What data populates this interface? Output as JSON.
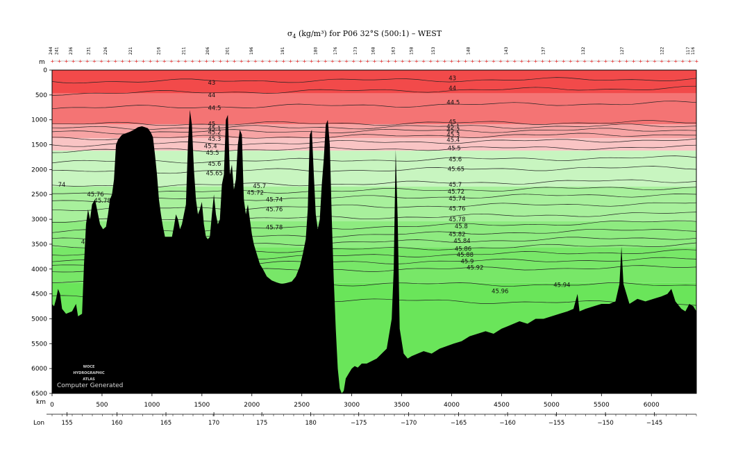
{
  "chart_data": {
    "type": "heatmap",
    "title_symbol": "σ",
    "title_sub": "4",
    "title_rest": " (kg/m³) for P06 32°S (500:1) – WEST",
    "depth_unit": "m",
    "distance_unit": "km",
    "lon_label": "Lon",
    "depth_ticks": [
      0,
      500,
      1000,
      1500,
      2000,
      2500,
      3000,
      3500,
      4000,
      4500,
      5000,
      5500,
      6000,
      6500
    ],
    "depth_range": [
      0,
      6500
    ],
    "distance_ticks": [
      0,
      500,
      1000,
      1500,
      2000,
      2500,
      3000,
      3500,
      4000,
      4500,
      5000,
      5500,
      6000
    ],
    "distance_range": [
      0,
      6450
    ],
    "lon_ticks": [
      {
        "km": 150,
        "label": "155"
      },
      {
        "km": 650,
        "label": "160"
      },
      {
        "km": 1140,
        "label": "165"
      },
      {
        "km": 1620,
        "label": "170"
      },
      {
        "km": 2100,
        "label": "175"
      },
      {
        "km": 2590,
        "label": "180"
      },
      {
        "km": 3070,
        "label": "−175"
      },
      {
        "km": 3570,
        "label": "−170"
      },
      {
        "km": 4070,
        "label": "−165"
      },
      {
        "km": 4560,
        "label": "−160"
      },
      {
        "km": 5050,
        "label": "−155"
      },
      {
        "km": 5540,
        "label": "−150"
      },
      {
        "km": 6030,
        "label": "−145"
      }
    ],
    "stations": [
      {
        "km": 0,
        "label": "244"
      },
      {
        "km": 60,
        "label": "241"
      },
      {
        "km": 200,
        "label": "236"
      },
      {
        "km": 380,
        "label": "231"
      },
      {
        "km": 550,
        "label": "226"
      },
      {
        "km": 800,
        "label": "221"
      },
      {
        "km": 1080,
        "label": "216"
      },
      {
        "km": 1330,
        "label": "211"
      },
      {
        "km": 1570,
        "label": "206"
      },
      {
        "km": 1770,
        "label": "201"
      },
      {
        "km": 2010,
        "label": "196"
      },
      {
        "km": 2320,
        "label": "191"
      },
      {
        "km": 2650,
        "label": "180"
      },
      {
        "km": 2850,
        "label": "176"
      },
      {
        "km": 3050,
        "label": "173"
      },
      {
        "km": 3230,
        "label": "168"
      },
      {
        "km": 3430,
        "label": "163"
      },
      {
        "km": 3610,
        "label": "158"
      },
      {
        "km": 3830,
        "label": "153"
      },
      {
        "km": 4180,
        "label": "148"
      },
      {
        "km": 4560,
        "label": "143"
      },
      {
        "km": 4930,
        "label": "137"
      },
      {
        "km": 5330,
        "label": "132"
      },
      {
        "km": 5720,
        "label": "127"
      },
      {
        "km": 6120,
        "label": "122"
      },
      {
        "km": 6380,
        "label": "117"
      },
      {
        "km": 6430,
        "label": "116"
      }
    ],
    "contour_levels": [
      {
        "value": "43",
        "depth_west": 230,
        "depth_east": 180
      },
      {
        "value": "44",
        "depth_west": 470,
        "depth_east": 360
      },
      {
        "value": "44.5",
        "depth_west": 760,
        "depth_east": 660
      },
      {
        "value": "45",
        "depth_west": 1090,
        "depth_east": 1050
      },
      {
        "value": "45.1",
        "depth_west": 1170,
        "depth_east": 1120
      },
      {
        "value": "45.2",
        "depth_west": 1250,
        "depth_east": 1200
      },
      {
        "value": "45.3",
        "depth_west": 1370,
        "depth_east": 1290
      },
      {
        "value": "45.4",
        "depth_west": 1500,
        "depth_east": 1400
      },
      {
        "value": "45.5",
        "depth_west": 1620,
        "depth_east": 1550
      },
      {
        "value": "45.6",
        "depth_west": 1850,
        "depth_east": 1760
      },
      {
        "value": "45.65",
        "depth_west": 2050,
        "depth_east": 1960
      },
      {
        "value": "45.7",
        "depth_west": 2340,
        "depth_east": 2220
      },
      {
        "value": "45.72",
        "depth_west": 2480,
        "depth_east": 2360
      },
      {
        "value": "45.74",
        "depth_west": 2620,
        "depth_east": 2500
      },
      {
        "value": "45.76",
        "depth_west": 2800,
        "depth_east": 2680
      },
      {
        "value": "45.78",
        "depth_west": 3040,
        "depth_east": 2880
      },
      {
        "value": "45.8",
        "depth_west": 3260,
        "depth_east": 3040
      },
      {
        "value": "45.82",
        "depth_west": 3420,
        "depth_east": 3200
      },
      {
        "value": "45.84",
        "depth_west": 3560,
        "depth_east": 3360
      },
      {
        "value": "45.86",
        "depth_west": 3700,
        "depth_east": 3500
      },
      {
        "value": "45.88",
        "depth_west": 3820,
        "depth_east": 3640
      },
      {
        "value": "45.9",
        "depth_west": 3920,
        "depth_east": 3800
      },
      {
        "value": "45.92",
        "depth_west": 4060,
        "depth_east": 3960
      },
      {
        "value": "45.94",
        "depth_west": 4280,
        "depth_east": 4320
      },
      {
        "value": "45.96",
        "depth_west": 4560,
        "depth_east": 4700
      }
    ],
    "contour_labels": [
      {
        "text": "43",
        "km": 1560,
        "depth": 250
      },
      {
        "text": "44",
        "km": 1560,
        "depth": 500
      },
      {
        "text": "44.5",
        "km": 1560,
        "depth": 760
      },
      {
        "text": "45",
        "km": 1560,
        "depth": 1080
      },
      {
        "text": "45.1",
        "km": 1560,
        "depth": 1170
      },
      {
        "text": "45.2",
        "km": 1560,
        "depth": 1250
      },
      {
        "text": "45.3",
        "km": 1560,
        "depth": 1380
      },
      {
        "text": "45.4",
        "km": 1520,
        "depth": 1530
      },
      {
        "text": "45.5",
        "km": 1540,
        "depth": 1660
      },
      {
        "text": "45.6",
        "km": 1560,
        "depth": 1880
      },
      {
        "text": "45.65",
        "km": 1540,
        "depth": 2070
      },
      {
        "text": "45.7",
        "km": 2010,
        "depth": 2330
      },
      {
        "text": "45.72",
        "km": 1950,
        "depth": 2460
      },
      {
        "text": "45.74",
        "km": 2140,
        "depth": 2600
      },
      {
        "text": "45.76",
        "km": 2140,
        "depth": 2800
      },
      {
        "text": "45.78",
        "km": 2140,
        "depth": 3160
      },
      {
        "text": "74",
        "km": 60,
        "depth": 2300
      },
      {
        "text": "45.76",
        "km": 350,
        "depth": 2500
      },
      {
        "text": "45.78",
        "km": 420,
        "depth": 2620
      },
      {
        "text": "45.9",
        "km": 290,
        "depth": 3450
      },
      {
        "text": "43",
        "km": 3970,
        "depth": 160
      },
      {
        "text": "44",
        "km": 3970,
        "depth": 360
      },
      {
        "text": "44.5",
        "km": 3950,
        "depth": 650
      },
      {
        "text": "45",
        "km": 3970,
        "depth": 1040
      },
      {
        "text": "45.1",
        "km": 3950,
        "depth": 1130
      },
      {
        "text": "45.2",
        "km": 3950,
        "depth": 1210
      },
      {
        "text": "45.3",
        "km": 3950,
        "depth": 1300
      },
      {
        "text": "45.4",
        "km": 3950,
        "depth": 1400
      },
      {
        "text": "45.5",
        "km": 3960,
        "depth": 1570
      },
      {
        "text": "45.6",
        "km": 3970,
        "depth": 1790
      },
      {
        "text": "45.65",
        "km": 3960,
        "depth": 1990
      },
      {
        "text": "45.7",
        "km": 3970,
        "depth": 2300
      },
      {
        "text": "45.72",
        "km": 3960,
        "depth": 2440
      },
      {
        "text": "45.74",
        "km": 3970,
        "depth": 2580
      },
      {
        "text": "45.76",
        "km": 3970,
        "depth": 2780
      },
      {
        "text": "45.78",
        "km": 3970,
        "depth": 3000
      },
      {
        "text": "45.8",
        "km": 4030,
        "depth": 3140
      },
      {
        "text": "45.82",
        "km": 3970,
        "depth": 3300
      },
      {
        "text": "45.84",
        "km": 4020,
        "depth": 3430
      },
      {
        "text": "45.86",
        "km": 4030,
        "depth": 3590
      },
      {
        "text": "45.88",
        "km": 4050,
        "depth": 3710
      },
      {
        "text": "45.9",
        "km": 4090,
        "depth": 3840
      },
      {
        "text": "45.92",
        "km": 4150,
        "depth": 3970
      },
      {
        "text": "45.94",
        "km": 5020,
        "depth": 4320
      },
      {
        "text": "45.96",
        "km": 4400,
        "depth": 4440
      }
    ],
    "color_bands": [
      {
        "from": 0,
        "to": 470,
        "color": "#f24a4a"
      },
      {
        "from": 470,
        "to": 1090,
        "color": "#f47474"
      },
      {
        "from": 1090,
        "to": 1370,
        "color": "#f7a4a4"
      },
      {
        "from": 1370,
        "to": 1620,
        "color": "#f9c4c4"
      },
      {
        "from": 1620,
        "to": 2340,
        "color": "#c8f5c0"
      },
      {
        "from": 2340,
        "to": 3040,
        "color": "#a8f09c"
      },
      {
        "from": 3040,
        "to": 3560,
        "color": "#8eeb80"
      },
      {
        "from": 3560,
        "to": 4280,
        "color": "#78e768"
      },
      {
        "from": 4280,
        "to": 6500,
        "color": "#6ae55a"
      }
    ],
    "bathymetry_km_depth": [
      [
        0,
        4700
      ],
      [
        20,
        4750
      ],
      [
        40,
        4600
      ],
      [
        60,
        4400
      ],
      [
        80,
        4500
      ],
      [
        100,
        4800
      ],
      [
        140,
        4900
      ],
      [
        200,
        4850
      ],
      [
        240,
        4700
      ],
      [
        260,
        4950
      ],
      [
        300,
        4900
      ],
      [
        320,
        3900
      ],
      [
        340,
        3100
      ],
      [
        360,
        2800
      ],
      [
        380,
        3000
      ],
      [
        400,
        2700
      ],
      [
        430,
        2600
      ],
      [
        460,
        2900
      ],
      [
        480,
        3100
      ],
      [
        510,
        3200
      ],
      [
        540,
        3150
      ],
      [
        560,
        2900
      ],
      [
        580,
        2600
      ],
      [
        600,
        2500
      ],
      [
        620,
        2200
      ],
      [
        640,
        1500
      ],
      [
        660,
        1400
      ],
      [
        700,
        1300
      ],
      [
        740,
        1270
      ],
      [
        780,
        1240
      ],
      [
        820,
        1200
      ],
      [
        860,
        1150
      ],
      [
        900,
        1130
      ],
      [
        930,
        1150
      ],
      [
        960,
        1170
      ],
      [
        990,
        1260
      ],
      [
        1010,
        1350
      ],
      [
        1030,
        1700
      ],
      [
        1050,
        2100
      ],
      [
        1070,
        2600
      ],
      [
        1090,
        2900
      ],
      [
        1110,
        3150
      ],
      [
        1130,
        3350
      ],
      [
        1160,
        3350
      ],
      [
        1200,
        3350
      ],
      [
        1220,
        3150
      ],
      [
        1240,
        2900
      ],
      [
        1260,
        3000
      ],
      [
        1280,
        3200
      ],
      [
        1300,
        3100
      ],
      [
        1320,
        2900
      ],
      [
        1340,
        2700
      ],
      [
        1360,
        1500
      ],
      [
        1380,
        800
      ],
      [
        1400,
        1100
      ],
      [
        1420,
        2000
      ],
      [
        1440,
        2600
      ],
      [
        1460,
        2900
      ],
      [
        1480,
        2800
      ],
      [
        1500,
        2650
      ],
      [
        1520,
        3100
      ],
      [
        1540,
        3350
      ],
      [
        1560,
        3400
      ],
      [
        1580,
        3350
      ],
      [
        1600,
        2900
      ],
      [
        1620,
        2500
      ],
      [
        1640,
        2900
      ],
      [
        1660,
        3100
      ],
      [
        1680,
        3000
      ],
      [
        1700,
        2300
      ],
      [
        1720,
        2100
      ],
      [
        1740,
        1000
      ],
      [
        1760,
        900
      ],
      [
        1780,
        2100
      ],
      [
        1800,
        1900
      ],
      [
        1820,
        2400
      ],
      [
        1840,
        2200
      ],
      [
        1860,
        1500
      ],
      [
        1880,
        1200
      ],
      [
        1900,
        1300
      ],
      [
        1920,
        2600
      ],
      [
        1940,
        2900
      ],
      [
        1960,
        2700
      ],
      [
        1980,
        3000
      ],
      [
        2000,
        3300
      ],
      [
        2020,
        3500
      ],
      [
        2050,
        3700
      ],
      [
        2080,
        3900
      ],
      [
        2110,
        4000
      ],
      [
        2150,
        4150
      ],
      [
        2200,
        4230
      ],
      [
        2250,
        4270
      ],
      [
        2300,
        4300
      ],
      [
        2350,
        4280
      ],
      [
        2400,
        4250
      ],
      [
        2440,
        4150
      ],
      [
        2480,
        3950
      ],
      [
        2510,
        3700
      ],
      [
        2540,
        3400
      ],
      [
        2560,
        2800
      ],
      [
        2580,
        1300
      ],
      [
        2600,
        1200
      ],
      [
        2620,
        2100
      ],
      [
        2640,
        2900
      ],
      [
        2660,
        3200
      ],
      [
        2680,
        3000
      ],
      [
        2700,
        2300
      ],
      [
        2720,
        1800
      ],
      [
        2740,
        1100
      ],
      [
        2760,
        1000
      ],
      [
        2780,
        1500
      ],
      [
        2800,
        3000
      ],
      [
        2820,
        4200
      ],
      [
        2840,
        5200
      ],
      [
        2860,
        6000
      ],
      [
        2880,
        6400
      ],
      [
        2900,
        6500
      ],
      [
        2920,
        6450
      ],
      [
        2940,
        6200
      ],
      [
        2970,
        6100
      ],
      [
        3000,
        6000
      ],
      [
        3030,
        5950
      ],
      [
        3060,
        5980
      ],
      [
        3100,
        5900
      ],
      [
        3150,
        5900
      ],
      [
        3200,
        5850
      ],
      [
        3250,
        5800
      ],
      [
        3300,
        5700
      ],
      [
        3350,
        5600
      ],
      [
        3400,
        5000
      ],
      [
        3420,
        4000
      ],
      [
        3440,
        1600
      ],
      [
        3460,
        3000
      ],
      [
        3480,
        5200
      ],
      [
        3520,
        5700
      ],
      [
        3560,
        5800
      ],
      [
        3600,
        5750
      ],
      [
        3660,
        5700
      ],
      [
        3720,
        5650
      ],
      [
        3800,
        5700
      ],
      [
        3880,
        5600
      ],
      [
        3950,
        5550
      ],
      [
        4020,
        5500
      ],
      [
        4100,
        5450
      ],
      [
        4180,
        5350
      ],
      [
        4260,
        5300
      ],
      [
        4340,
        5250
      ],
      [
        4420,
        5300
      ],
      [
        4500,
        5200
      ],
      [
        4560,
        5150
      ],
      [
        4620,
        5100
      ],
      [
        4680,
        5050
      ],
      [
        4760,
        5100
      ],
      [
        4840,
        5000
      ],
      [
        4920,
        5000
      ],
      [
        5000,
        4950
      ],
      [
        5080,
        4900
      ],
      [
        5160,
        4850
      ],
      [
        5220,
        4800
      ],
      [
        5260,
        4500
      ],
      [
        5280,
        4850
      ],
      [
        5340,
        4800
      ],
      [
        5420,
        4750
      ],
      [
        5500,
        4700
      ],
      [
        5580,
        4700
      ],
      [
        5640,
        4650
      ],
      [
        5680,
        4300
      ],
      [
        5700,
        3550
      ],
      [
        5720,
        4300
      ],
      [
        5780,
        4700
      ],
      [
        5860,
        4600
      ],
      [
        5940,
        4650
      ],
      [
        6020,
        4600
      ],
      [
        6100,
        4550
      ],
      [
        6160,
        4500
      ],
      [
        6200,
        4400
      ],
      [
        6240,
        4650
      ],
      [
        6300,
        4800
      ],
      [
        6340,
        4850
      ],
      [
        6380,
        4700
      ],
      [
        6420,
        4750
      ],
      [
        6450,
        4850
      ]
    ],
    "logo_lines": [
      "WOCE",
      "HYDROGRAPHIC",
      "ATLAS"
    ],
    "credit": "Computer Generated",
    "colors": {
      "background": "#ffffff",
      "bathymetry": "#000000",
      "station_marker": "#e01010",
      "contour": "#222222"
    }
  }
}
